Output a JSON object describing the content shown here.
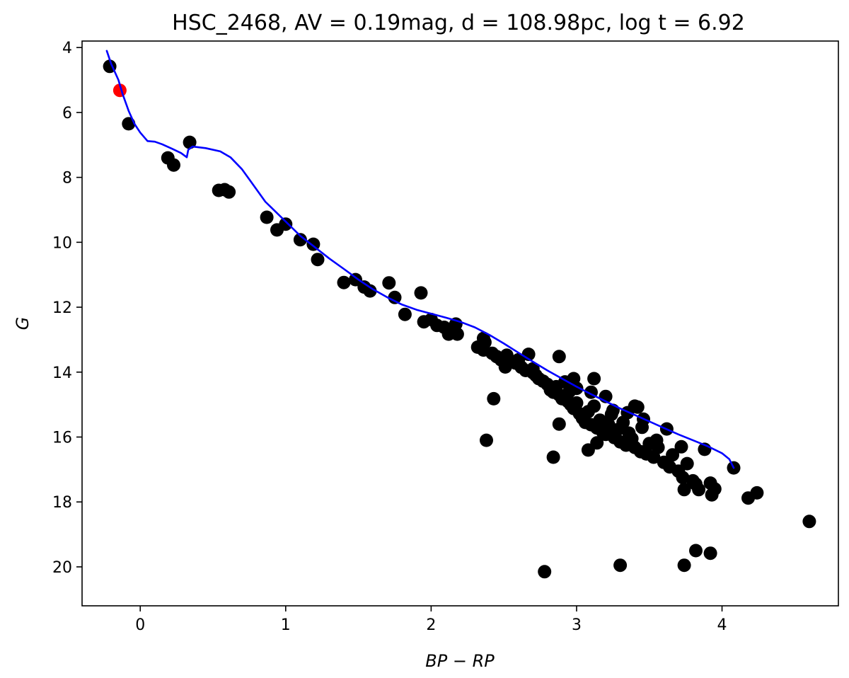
{
  "chart_data": {
    "type": "scatter",
    "title": "HSC_2468, AV = 0.19mag, d = 108.98pc, log t = 6.92",
    "xlabel": "BP − RP",
    "ylabel": "G",
    "xlim": [
      -0.4,
      4.8
    ],
    "ylim": [
      21.2,
      3.8
    ],
    "y_inverted": true,
    "grid": false,
    "xticks": [
      {
        "value": 0,
        "label": "0"
      },
      {
        "value": 1,
        "label": "1"
      },
      {
        "value": 2,
        "label": "2"
      },
      {
        "value": 3,
        "label": "3"
      },
      {
        "value": 4,
        "label": "4"
      }
    ],
    "yticks": [
      {
        "value": 4,
        "label": "4"
      },
      {
        "value": 6,
        "label": "6"
      },
      {
        "value": 8,
        "label": "8"
      },
      {
        "value": 10,
        "label": "10"
      },
      {
        "value": 12,
        "label": "12"
      },
      {
        "value": 14,
        "label": "14"
      },
      {
        "value": 16,
        "label": "16"
      },
      {
        "value": 18,
        "label": "18"
      },
      {
        "value": 20,
        "label": "20"
      }
    ],
    "colors": {
      "members": "#000000",
      "highlight": "#ff0000",
      "isochrone": "#0000ff"
    },
    "highlight_point": [
      -0.14,
      5.32
    ],
    "members": [
      [
        -0.21,
        4.58
      ],
      [
        -0.08,
        6.35
      ],
      [
        0.19,
        7.4
      ],
      [
        0.23,
        7.62
      ],
      [
        0.34,
        6.92
      ],
      [
        0.54,
        8.4
      ],
      [
        0.58,
        8.38
      ],
      [
        0.61,
        8.45
      ],
      [
        0.87,
        9.23
      ],
      [
        0.94,
        9.62
      ],
      [
        1.0,
        9.44
      ],
      [
        1.1,
        9.92
      ],
      [
        1.19,
        10.06
      ],
      [
        1.22,
        10.53
      ],
      [
        1.4,
        11.24
      ],
      [
        1.48,
        11.15
      ],
      [
        1.54,
        11.38
      ],
      [
        1.58,
        11.5
      ],
      [
        1.71,
        11.25
      ],
      [
        1.75,
        11.7
      ],
      [
        1.82,
        12.22
      ],
      [
        1.93,
        11.56
      ],
      [
        1.95,
        12.45
      ],
      [
        2.0,
        12.38
      ],
      [
        2.04,
        12.56
      ],
      [
        2.09,
        12.62
      ],
      [
        2.12,
        12.83
      ],
      [
        2.18,
        12.83
      ],
      [
        2.17,
        12.52
      ],
      [
        2.32,
        13.23
      ],
      [
        2.36,
        13.32
      ],
      [
        2.37,
        13.08
      ],
      [
        2.36,
        12.96
      ],
      [
        2.42,
        13.42
      ],
      [
        2.45,
        13.52
      ],
      [
        2.48,
        13.62
      ],
      [
        2.51,
        13.84
      ],
      [
        2.55,
        13.68
      ],
      [
        2.58,
        13.72
      ],
      [
        2.62,
        13.85
      ],
      [
        2.65,
        13.95
      ],
      [
        2.67,
        13.45
      ],
      [
        2.7,
        14.02
      ],
      [
        2.72,
        14.1
      ],
      [
        2.74,
        14.2
      ],
      [
        2.77,
        14.28
      ],
      [
        2.8,
        14.38
      ],
      [
        2.82,
        14.55
      ],
      [
        2.84,
        14.62
      ],
      [
        2.86,
        14.45
      ],
      [
        2.88,
        14.7
      ],
      [
        2.9,
        14.82
      ],
      [
        2.92,
        14.3
      ],
      [
        2.94,
        14.9
      ],
      [
        2.96,
        15.0
      ],
      [
        2.98,
        15.12
      ],
      [
        3.0,
        14.95
      ],
      [
        3.02,
        15.28
      ],
      [
        3.04,
        15.42
      ],
      [
        3.06,
        15.55
      ],
      [
        3.08,
        15.22
      ],
      [
        3.1,
        15.62
      ],
      [
        3.12,
        15.05
      ],
      [
        3.14,
        15.72
      ],
      [
        3.16,
        15.48
      ],
      [
        3.18,
        15.85
      ],
      [
        3.2,
        15.92
      ],
      [
        3.22,
        15.62
      ],
      [
        3.24,
        15.3
      ],
      [
        3.26,
        16.02
      ],
      [
        3.28,
        15.78
      ],
      [
        3.3,
        16.15
      ],
      [
        3.32,
        15.55
      ],
      [
        3.34,
        16.25
      ],
      [
        3.36,
        15.88
      ],
      [
        3.38,
        16.05
      ],
      [
        3.4,
        16.32
      ],
      [
        3.42,
        15.08
      ],
      [
        3.44,
        16.45
      ],
      [
        3.46,
        15.45
      ],
      [
        3.48,
        16.52
      ],
      [
        3.5,
        16.2
      ],
      [
        3.53,
        16.62
      ],
      [
        3.56,
        16.32
      ],
      [
        3.6,
        16.78
      ],
      [
        3.62,
        15.75
      ],
      [
        3.64,
        16.92
      ],
      [
        3.66,
        16.55
      ],
      [
        3.7,
        17.05
      ],
      [
        3.72,
        16.3
      ],
      [
        3.73,
        17.25
      ],
      [
        3.74,
        17.62
      ],
      [
        3.76,
        16.82
      ],
      [
        3.8,
        17.35
      ],
      [
        3.82,
        17.45
      ],
      [
        3.84,
        17.62
      ],
      [
        3.88,
        16.38
      ],
      [
        3.92,
        17.42
      ],
      [
        3.93,
        17.78
      ],
      [
        3.95,
        17.6
      ],
      [
        4.08,
        16.95
      ],
      [
        4.18,
        17.88
      ],
      [
        4.24,
        17.72
      ],
      [
        4.6,
        18.6
      ],
      [
        2.84,
        16.62
      ],
      [
        2.88,
        15.6
      ],
      [
        3.08,
        16.4
      ],
      [
        3.14,
        16.18
      ],
      [
        2.43,
        14.82
      ],
      [
        2.38,
        16.1
      ],
      [
        2.78,
        20.15
      ],
      [
        3.3,
        19.95
      ],
      [
        3.74,
        19.95
      ],
      [
        3.82,
        19.5
      ],
      [
        3.92,
        19.58
      ],
      [
        2.88,
        13.52
      ],
      [
        2.98,
        14.2
      ],
      [
        3.12,
        14.2
      ],
      [
        3.4,
        15.05
      ],
      [
        3.0,
        14.5
      ],
      [
        3.1,
        14.62
      ],
      [
        3.2,
        14.75
      ],
      [
        2.7,
        13.9
      ],
      [
        2.6,
        13.62
      ],
      [
        2.52,
        13.48
      ],
      [
        3.35,
        15.25
      ],
      [
        3.45,
        15.7
      ],
      [
        3.55,
        16.1
      ],
      [
        3.25,
        15.18
      ],
      [
        2.95,
        14.6
      ]
    ],
    "isochrone": [
      [
        -0.23,
        4.1
      ],
      [
        -0.2,
        4.5
      ],
      [
        -0.15,
        5.0
      ],
      [
        -0.12,
        5.45
      ],
      [
        -0.08,
        5.95
      ],
      [
        -0.04,
        6.35
      ],
      [
        0.0,
        6.62
      ],
      [
        0.05,
        6.88
      ],
      [
        0.1,
        6.9
      ],
      [
        0.15,
        6.98
      ],
      [
        0.22,
        7.12
      ],
      [
        0.28,
        7.25
      ],
      [
        0.32,
        7.38
      ],
      [
        0.33,
        7.15
      ],
      [
        0.36,
        7.05
      ],
      [
        0.45,
        7.1
      ],
      [
        0.55,
        7.2
      ],
      [
        0.62,
        7.38
      ],
      [
        0.7,
        7.75
      ],
      [
        0.78,
        8.25
      ],
      [
        0.86,
        8.75
      ],
      [
        0.94,
        9.1
      ],
      [
        1.02,
        9.45
      ],
      [
        1.1,
        9.8
      ],
      [
        1.2,
        10.15
      ],
      [
        1.3,
        10.5
      ],
      [
        1.4,
        10.82
      ],
      [
        1.5,
        11.15
      ],
      [
        1.6,
        11.45
      ],
      [
        1.7,
        11.7
      ],
      [
        1.8,
        11.92
      ],
      [
        1.9,
        12.08
      ],
      [
        2.0,
        12.2
      ],
      [
        2.1,
        12.32
      ],
      [
        2.2,
        12.45
      ],
      [
        2.3,
        12.62
      ],
      [
        2.4,
        12.85
      ],
      [
        2.5,
        13.12
      ],
      [
        2.6,
        13.4
      ],
      [
        2.7,
        13.68
      ],
      [
        2.8,
        13.95
      ],
      [
        2.9,
        14.2
      ],
      [
        3.0,
        14.45
      ],
      [
        3.1,
        14.68
      ],
      [
        3.2,
        14.9
      ],
      [
        3.3,
        15.12
      ],
      [
        3.4,
        15.32
      ],
      [
        3.5,
        15.52
      ],
      [
        3.6,
        15.72
      ],
      [
        3.7,
        15.92
      ],
      [
        3.8,
        16.1
      ],
      [
        3.9,
        16.28
      ],
      [
        4.0,
        16.5
      ],
      [
        4.05,
        16.68
      ],
      [
        4.08,
        16.95
      ]
    ]
  }
}
